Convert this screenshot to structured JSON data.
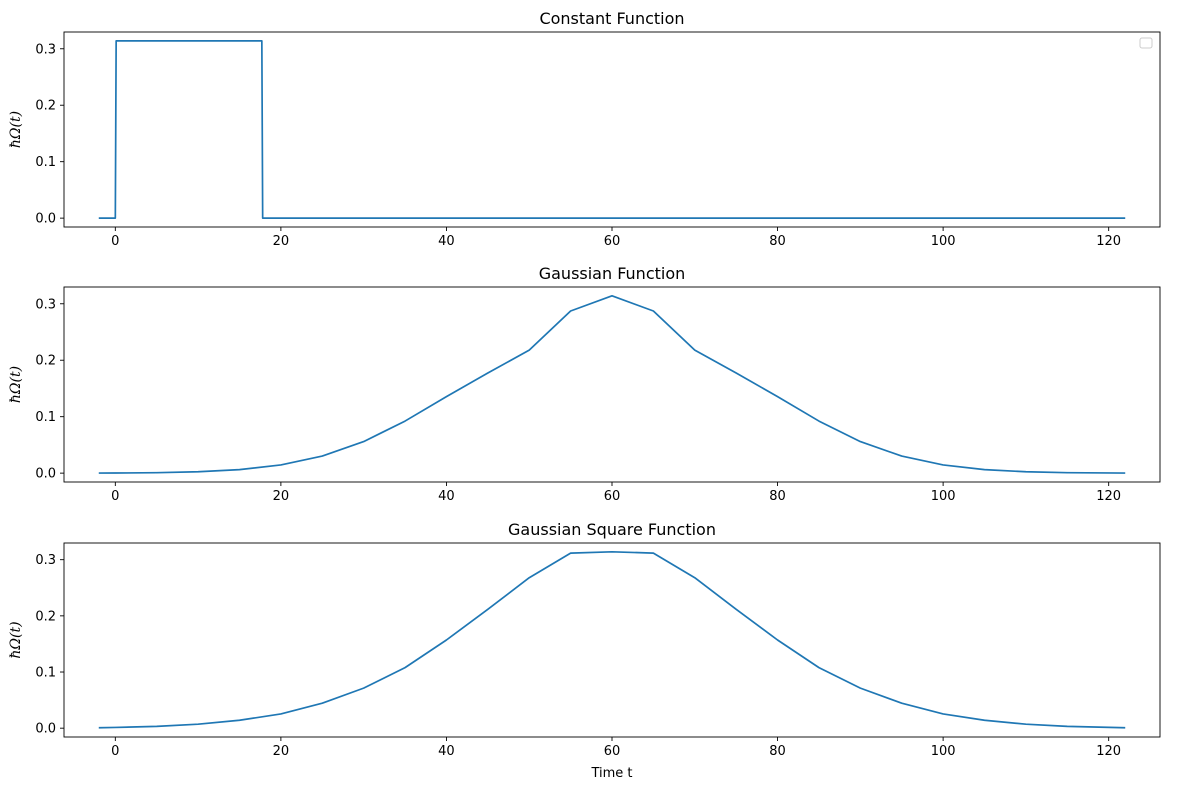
{
  "chart_data": [
    {
      "type": "line",
      "title": "Constant Function",
      "xlabel": "",
      "ylabel": "ħΩ(t)",
      "xlim": [
        -6.2,
        126.2
      ],
      "ylim": [
        -0.0157,
        0.3297
      ],
      "xticks": [
        0,
        20,
        40,
        60,
        80,
        100,
        120
      ],
      "yticks": [
        0.0,
        0.1,
        0.2,
        0.3
      ],
      "ytick_labels": [
        "0.0",
        "0.1",
        "0.2",
        "0.3"
      ],
      "grid": false,
      "legend": {
        "placement": "top-right",
        "entries": []
      },
      "color": "#1f77b4",
      "series": [
        {
          "x": [
            -2,
            0,
            0.1,
            17.7,
            17.8,
            122
          ],
          "y": [
            0,
            0,
            0.314,
            0.314,
            0,
            0
          ]
        }
      ]
    },
    {
      "type": "line",
      "title": "Gaussian Function",
      "xlabel": "",
      "ylabel": "ħΩ(t)",
      "xlim": [
        -6.2,
        126.2
      ],
      "ylim": [
        -0.0157,
        0.3297
      ],
      "xticks": [
        0,
        20,
        40,
        60,
        80,
        100,
        120
      ],
      "yticks": [
        0.0,
        0.1,
        0.2,
        0.3
      ],
      "ytick_labels": [
        "0.0",
        "0.1",
        "0.2",
        "0.3"
      ],
      "grid": false,
      "color": "#1f77b4",
      "series": [
        {
          "x": [
            -2,
            0,
            5,
            10,
            15,
            20,
            25,
            30,
            35,
            40,
            45,
            50,
            55,
            60,
            65,
            70,
            75,
            80,
            85,
            90,
            95,
            100,
            105,
            110,
            115,
            122
          ],
          "y": [
            0.0001,
            0.0002,
            0.0008,
            0.0024,
            0.0062,
            0.0145,
            0.0302,
            0.0559,
            0.0922,
            0.1355,
            0.1774,
            0.2178,
            0.2872,
            0.314,
            0.2872,
            0.2178,
            0.1774,
            0.1355,
            0.0922,
            0.0559,
            0.0302,
            0.0145,
            0.0062,
            0.0024,
            0.0008,
            0.0001
          ]
        }
      ]
    },
    {
      "type": "line",
      "title": "Gaussian Square Function",
      "xlabel": "Time t",
      "ylabel": "ħΩ(t)",
      "xlim": [
        -6.2,
        126.2
      ],
      "ylim": [
        -0.0157,
        0.3297
      ],
      "xticks": [
        0,
        20,
        40,
        60,
        80,
        100,
        120
      ],
      "yticks": [
        0.0,
        0.1,
        0.2,
        0.3
      ],
      "ytick_labels": [
        "0.0",
        "0.1",
        "0.2",
        "0.3"
      ],
      "grid": false,
      "color": "#1f77b4",
      "series": [
        {
          "x": [
            -2,
            0,
            5,
            10,
            15,
            20,
            25,
            30,
            35,
            40,
            45,
            50,
            55,
            60,
            65,
            70,
            75,
            80,
            85,
            90,
            95,
            100,
            105,
            110,
            115,
            122
          ],
          "y": [
            0.0008,
            0.0013,
            0.0032,
            0.0071,
            0.0141,
            0.0253,
            0.0445,
            0.0713,
            0.1078,
            0.157,
            0.2117,
            0.2679,
            0.3117,
            0.314,
            0.3117,
            0.2679,
            0.2117,
            0.157,
            0.1078,
            0.0713,
            0.0445,
            0.0253,
            0.0141,
            0.0071,
            0.0032,
            0.0008
          ]
        }
      ]
    }
  ]
}
